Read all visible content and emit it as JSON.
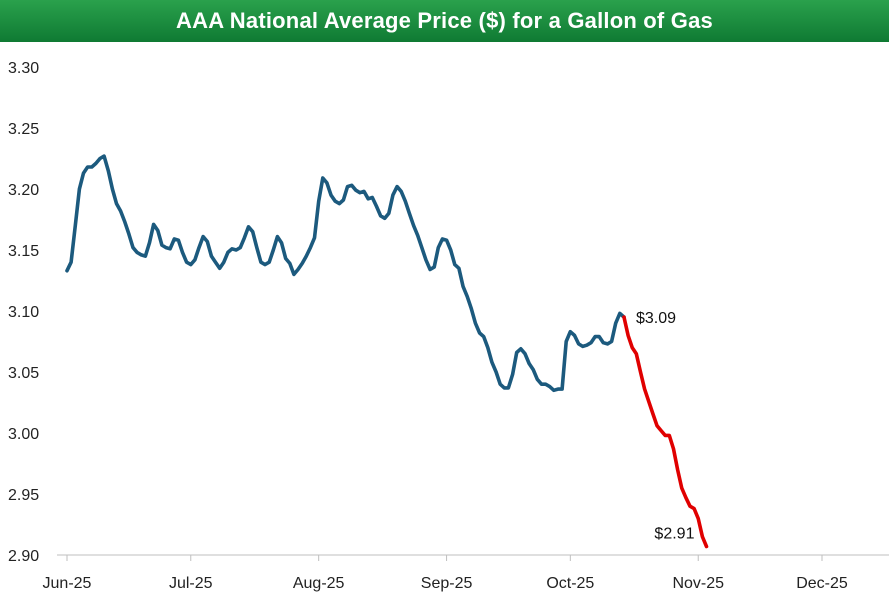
{
  "chart_data": {
    "type": "line",
    "title": "AAA National Average Price ($) for a Gallon of Gas",
    "xlabel": "",
    "ylabel": "",
    "ylim": [
      2.9,
      3.3
    ],
    "yticks": [
      "3.30",
      "3.25",
      "3.20",
      "3.15",
      "3.10",
      "3.05",
      "3.00",
      "2.95",
      "2.90"
    ],
    "ytick_values": [
      3.3,
      3.25,
      3.2,
      3.15,
      3.1,
      3.05,
      3.0,
      2.95,
      2.9
    ],
    "xlim": [
      0,
      187
    ],
    "xticks": [
      {
        "label": "Jun-25",
        "day": 0
      },
      {
        "label": "Jul-25",
        "day": 30
      },
      {
        "label": "Aug-25",
        "day": 61
      },
      {
        "label": "Sep-25",
        "day": 92
      },
      {
        "label": "Oct-25",
        "day": 122
      },
      {
        "label": "Nov-25",
        "day": 153
      },
      {
        "label": "Dec-25",
        "day": 183
      }
    ],
    "grid": false,
    "series": [
      {
        "name": "Through Nov-25 peak",
        "color": "#1c5a7e",
        "points": [
          [
            0,
            3.133
          ],
          [
            1,
            3.14
          ],
          [
            2,
            3.17
          ],
          [
            3,
            3.2
          ],
          [
            4,
            3.213
          ],
          [
            5,
            3.218
          ],
          [
            6,
            3.218
          ],
          [
            7,
            3.221
          ],
          [
            8,
            3.225
          ],
          [
            9,
            3.227
          ],
          [
            10,
            3.215
          ],
          [
            11,
            3.2
          ],
          [
            12,
            3.188
          ],
          [
            13,
            3.182
          ],
          [
            14,
            3.173
          ],
          [
            15,
            3.163
          ],
          [
            16,
            3.152
          ],
          [
            17,
            3.148
          ],
          [
            18,
            3.146
          ],
          [
            19,
            3.145
          ],
          [
            20,
            3.156
          ],
          [
            21,
            3.171
          ],
          [
            22,
            3.166
          ],
          [
            23,
            3.154
          ],
          [
            24,
            3.152
          ],
          [
            25,
            3.151
          ],
          [
            26,
            3.159
          ],
          [
            27,
            3.158
          ],
          [
            28,
            3.148
          ],
          [
            29,
            3.14
          ],
          [
            30,
            3.138
          ],
          [
            31,
            3.142
          ],
          [
            32,
            3.152
          ],
          [
            33,
            3.161
          ],
          [
            34,
            3.157
          ],
          [
            35,
            3.145
          ],
          [
            36,
            3.14
          ],
          [
            37,
            3.135
          ],
          [
            38,
            3.14
          ],
          [
            39,
            3.148
          ],
          [
            40,
            3.151
          ],
          [
            41,
            3.15
          ],
          [
            42,
            3.152
          ],
          [
            43,
            3.16
          ],
          [
            44,
            3.169
          ],
          [
            45,
            3.165
          ],
          [
            46,
            3.152
          ],
          [
            47,
            3.14
          ],
          [
            48,
            3.138
          ],
          [
            49,
            3.14
          ],
          [
            50,
            3.15
          ],
          [
            51,
            3.161
          ],
          [
            52,
            3.156
          ],
          [
            53,
            3.143
          ],
          [
            54,
            3.139
          ],
          [
            55,
            3.13
          ],
          [
            56,
            3.134
          ],
          [
            57,
            3.139
          ],
          [
            58,
            3.145
          ],
          [
            59,
            3.152
          ],
          [
            60,
            3.16
          ],
          [
            61,
            3.19
          ],
          [
            62,
            3.209
          ],
          [
            63,
            3.205
          ],
          [
            64,
            3.195
          ],
          [
            65,
            3.19
          ],
          [
            66,
            3.188
          ],
          [
            67,
            3.191
          ],
          [
            68,
            3.202
          ],
          [
            69,
            3.203
          ],
          [
            70,
            3.199
          ],
          [
            71,
            3.197
          ],
          [
            72,
            3.198
          ],
          [
            73,
            3.192
          ],
          [
            74,
            3.193
          ],
          [
            75,
            3.186
          ],
          [
            76,
            3.178
          ],
          [
            77,
            3.176
          ],
          [
            78,
            3.18
          ],
          [
            79,
            3.195
          ],
          [
            80,
            3.202
          ],
          [
            81,
            3.198
          ],
          [
            82,
            3.19
          ],
          [
            83,
            3.18
          ],
          [
            84,
            3.17
          ],
          [
            85,
            3.162
          ],
          [
            86,
            3.152
          ],
          [
            87,
            3.142
          ],
          [
            88,
            3.134
          ],
          [
            89,
            3.136
          ],
          [
            90,
            3.152
          ],
          [
            91,
            3.159
          ],
          [
            92,
            3.158
          ],
          [
            93,
            3.15
          ],
          [
            94,
            3.138
          ],
          [
            95,
            3.135
          ],
          [
            96,
            3.12
          ],
          [
            97,
            3.112
          ],
          [
            98,
            3.102
          ],
          [
            99,
            3.09
          ],
          [
            100,
            3.082
          ],
          [
            101,
            3.079
          ],
          [
            102,
            3.07
          ],
          [
            103,
            3.058
          ],
          [
            104,
            3.05
          ],
          [
            105,
            3.04
          ],
          [
            106,
            3.037
          ],
          [
            107,
            3.037
          ],
          [
            108,
            3.048
          ],
          [
            109,
            3.066
          ],
          [
            110,
            3.069
          ],
          [
            111,
            3.065
          ],
          [
            112,
            3.057
          ],
          [
            113,
            3.052
          ],
          [
            114,
            3.044
          ],
          [
            115,
            3.04
          ],
          [
            116,
            3.04
          ],
          [
            117,
            3.038
          ],
          [
            118,
            3.035
          ],
          [
            119,
            3.036
          ],
          [
            120,
            3.036
          ],
          [
            121,
            3.075
          ],
          [
            122,
            3.083
          ],
          [
            123,
            3.08
          ],
          [
            124,
            3.073
          ],
          [
            125,
            3.071
          ],
          [
            126,
            3.072
          ],
          [
            127,
            3.074
          ],
          [
            128,
            3.079
          ],
          [
            129,
            3.079
          ],
          [
            130,
            3.074
          ],
          [
            131,
            3.073
          ],
          [
            132,
            3.075
          ],
          [
            133,
            3.09
          ],
          [
            134,
            3.098
          ],
          [
            135,
            3.095
          ]
        ]
      },
      {
        "name": "Decline to Dec-25",
        "color": "#e00000",
        "points": [
          [
            135,
            3.095
          ],
          [
            136,
            3.08
          ],
          [
            137,
            3.07
          ],
          [
            138,
            3.065
          ],
          [
            139,
            3.05
          ],
          [
            140,
            3.036
          ],
          [
            141,
            3.026
          ],
          [
            142,
            3.016
          ],
          [
            143,
            3.006
          ],
          [
            144,
            3.002
          ],
          [
            145,
            2.998
          ],
          [
            146,
            2.998
          ],
          [
            147,
            2.987
          ],
          [
            148,
            2.97
          ],
          [
            149,
            2.955
          ],
          [
            150,
            2.947
          ],
          [
            151,
            2.94
          ],
          [
            152,
            2.938
          ],
          [
            153,
            2.93
          ],
          [
            154,
            2.915
          ],
          [
            155,
            2.907
          ]
        ]
      }
    ],
    "annotations": [
      {
        "text": "$3.09",
        "x": 135,
        "y": 3.095
      },
      {
        "text": "$2.91",
        "x": 155,
        "y": 2.907
      }
    ]
  }
}
